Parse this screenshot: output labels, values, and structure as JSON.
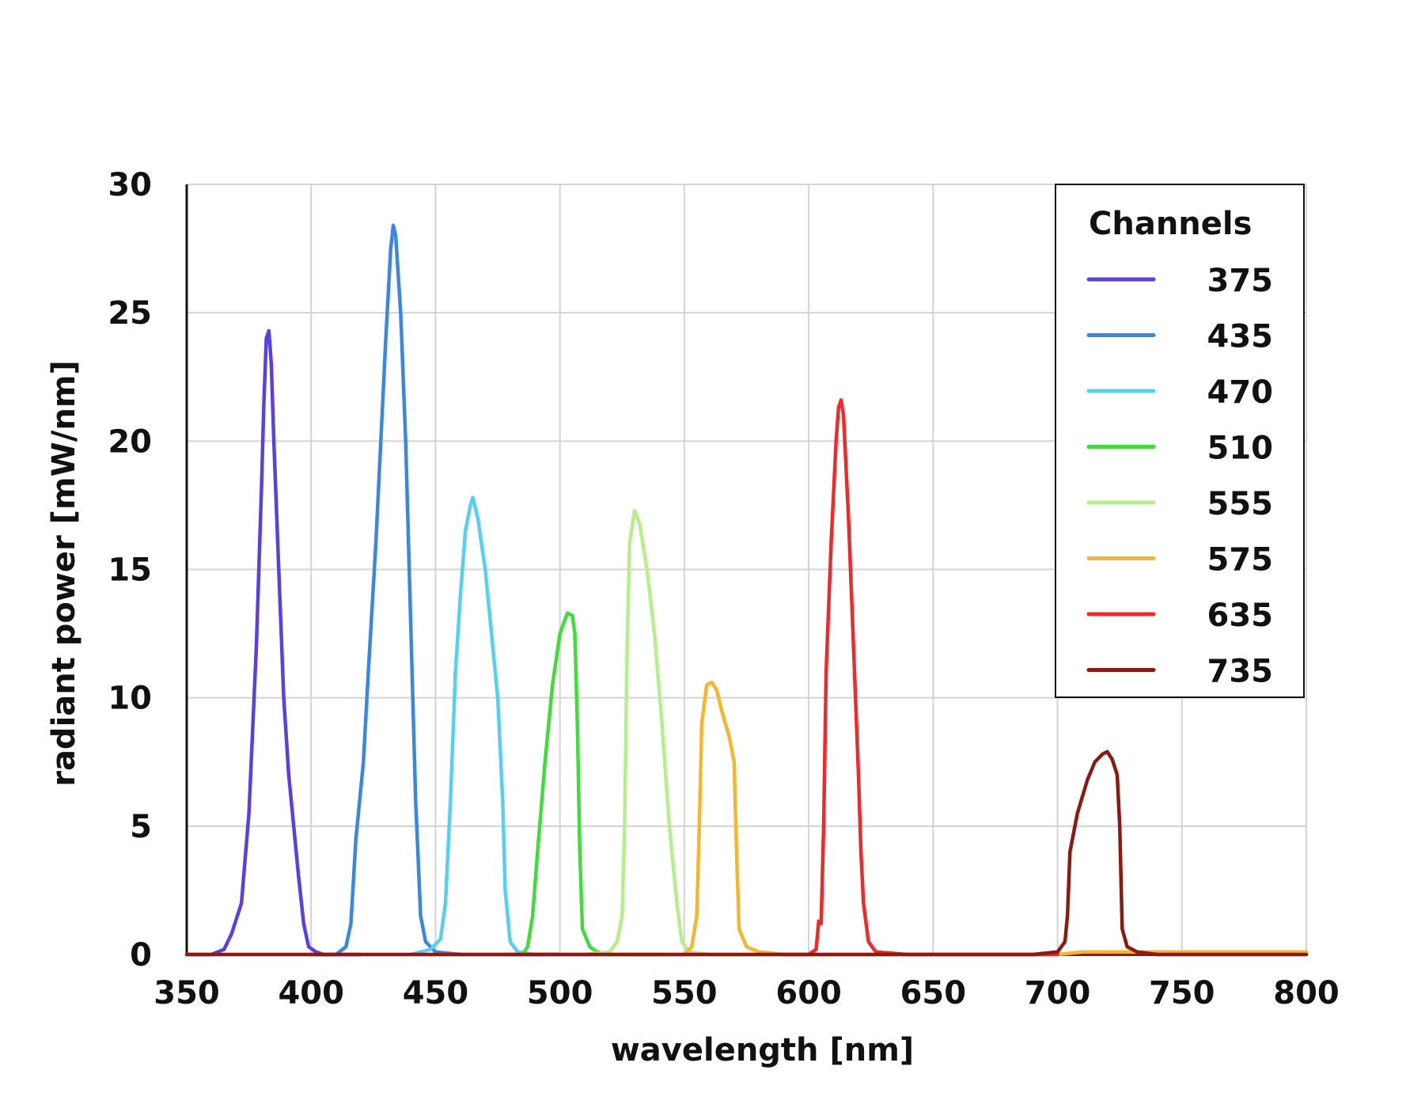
{
  "chart_data": {
    "type": "line",
    "xlabel": "wavelength [nm]",
    "ylabel": "radiant power [mW/nm]",
    "xlim": [
      350,
      800
    ],
    "ylim": [
      0,
      30
    ],
    "x_ticks": [
      350,
      400,
      450,
      500,
      550,
      600,
      650,
      700,
      750,
      800
    ],
    "y_ticks": [
      0,
      5,
      10,
      15,
      20,
      25,
      30
    ],
    "grid": true,
    "legend": {
      "title": "Channels",
      "placement": "top-right"
    },
    "series": [
      {
        "name": "375",
        "color": "#5b3fe0",
        "points": [
          [
            350,
            0
          ],
          [
            360,
            0
          ],
          [
            365,
            0.2
          ],
          [
            368,
            0.8
          ],
          [
            372,
            2
          ],
          [
            375,
            5.5
          ],
          [
            378,
            12
          ],
          [
            380,
            18
          ],
          [
            381,
            21.5
          ],
          [
            382,
            24
          ],
          [
            383,
            24.3
          ],
          [
            384,
            23
          ],
          [
            385,
            20
          ],
          [
            387,
            15
          ],
          [
            389,
            10
          ],
          [
            391,
            7
          ],
          [
            393,
            5
          ],
          [
            395,
            3
          ],
          [
            397,
            1.2
          ],
          [
            399,
            0.3
          ],
          [
            402,
            0.1
          ],
          [
            405,
            0
          ],
          [
            420,
            0
          ]
        ]
      },
      {
        "name": "435",
        "color": "#3b87e0",
        "points": [
          [
            400,
            0
          ],
          [
            410,
            0
          ],
          [
            414,
            0.3
          ],
          [
            416,
            1.2
          ],
          [
            418,
            4.5
          ],
          [
            421,
            7.5
          ],
          [
            423,
            11
          ],
          [
            426,
            16
          ],
          [
            428,
            20
          ],
          [
            430,
            24
          ],
          [
            432,
            27.5
          ],
          [
            433,
            28.4
          ],
          [
            434,
            28
          ],
          [
            436,
            25
          ],
          [
            438,
            20
          ],
          [
            440,
            13
          ],
          [
            442,
            6
          ],
          [
            444,
            1.5
          ],
          [
            446,
            0.5
          ],
          [
            450,
            0.1
          ],
          [
            460,
            0
          ],
          [
            500,
            0
          ]
        ]
      },
      {
        "name": "470",
        "color": "#55d0f0",
        "points": [
          [
            440,
            0
          ],
          [
            448,
            0.2
          ],
          [
            452,
            0.6
          ],
          [
            454,
            2
          ],
          [
            456,
            6
          ],
          [
            458,
            11
          ],
          [
            460,
            14
          ],
          [
            462,
            16.5
          ],
          [
            464,
            17.5
          ],
          [
            465,
            17.8
          ],
          [
            467,
            17
          ],
          [
            470,
            15
          ],
          [
            472,
            13
          ],
          [
            475,
            10
          ],
          [
            477,
            6
          ],
          [
            478,
            2.5
          ],
          [
            480,
            0.5
          ],
          [
            483,
            0.1
          ],
          [
            490,
            0
          ],
          [
            520,
            0
          ]
        ]
      },
      {
        "name": "510",
        "color": "#3fdc3a",
        "points": [
          [
            480,
            0
          ],
          [
            485,
            0
          ],
          [
            487,
            0.3
          ],
          [
            489,
            1.5
          ],
          [
            491,
            4
          ],
          [
            494,
            7.5
          ],
          [
            497,
            10.5
          ],
          [
            500,
            12.5
          ],
          [
            503,
            13.3
          ],
          [
            505,
            13.2
          ],
          [
            506,
            12.5
          ],
          [
            507,
            9
          ],
          [
            508,
            4
          ],
          [
            509,
            1
          ],
          [
            512,
            0.3
          ],
          [
            515,
            0.1
          ],
          [
            520,
            0
          ],
          [
            540,
            0
          ]
        ]
      },
      {
        "name": "555",
        "color": "#b6ee8a",
        "points": [
          [
            510,
            0
          ],
          [
            520,
            0.1
          ],
          [
            523,
            0.5
          ],
          [
            525,
            1.5
          ],
          [
            526,
            5
          ],
          [
            527,
            12
          ],
          [
            528,
            16
          ],
          [
            530,
            17.3
          ],
          [
            532,
            16.8
          ],
          [
            535,
            15
          ],
          [
            538,
            12.5
          ],
          [
            541,
            9
          ],
          [
            544,
            5
          ],
          [
            547,
            2
          ],
          [
            549,
            0.5
          ],
          [
            552,
            0.1
          ],
          [
            560,
            0
          ],
          [
            580,
            0
          ]
        ]
      },
      {
        "name": "575",
        "color": "#f5b52e",
        "points": [
          [
            540,
            0
          ],
          [
            550,
            0
          ],
          [
            553,
            0.3
          ],
          [
            555,
            1.5
          ],
          [
            556,
            5
          ],
          [
            557,
            9
          ],
          [
            559,
            10.5
          ],
          [
            561,
            10.6
          ],
          [
            563,
            10.3
          ],
          [
            565,
            9.5
          ],
          [
            568,
            8.5
          ],
          [
            570,
            7.5
          ],
          [
            571,
            4
          ],
          [
            572,
            1
          ],
          [
            575,
            0.3
          ],
          [
            580,
            0.1
          ],
          [
            590,
            0
          ],
          [
            700,
            0
          ],
          [
            710,
            0.1
          ],
          [
            760,
            0.1
          ],
          [
            800,
            0.1
          ]
        ]
      },
      {
        "name": "635",
        "color": "#ee2a2a",
        "points": [
          [
            590,
            0
          ],
          [
            600,
            0
          ],
          [
            603,
            0.2
          ],
          [
            604,
            1.3
          ],
          [
            605,
            1.2
          ],
          [
            606,
            5
          ],
          [
            607,
            11
          ],
          [
            609,
            16
          ],
          [
            611,
            20
          ],
          [
            612,
            21.3
          ],
          [
            613,
            21.6
          ],
          [
            614,
            21
          ],
          [
            616,
            17
          ],
          [
            618,
            12
          ],
          [
            620,
            7
          ],
          [
            621,
            4
          ],
          [
            622,
            2
          ],
          [
            624,
            0.5
          ],
          [
            627,
            0.1
          ],
          [
            640,
            0
          ],
          [
            700,
            0
          ]
        ]
      },
      {
        "name": "735",
        "color": "#8b1a14",
        "points": [
          [
            350,
            0
          ],
          [
            690,
            0
          ],
          [
            700,
            0.1
          ],
          [
            703,
            0.5
          ],
          [
            704,
            1.5
          ],
          [
            705,
            4
          ],
          [
            708,
            5.5
          ],
          [
            712,
            6.8
          ],
          [
            715,
            7.5
          ],
          [
            718,
            7.8
          ],
          [
            720,
            7.9
          ],
          [
            722,
            7.6
          ],
          [
            724,
            7
          ],
          [
            725,
            5
          ],
          [
            726,
            1
          ],
          [
            728,
            0.3
          ],
          [
            732,
            0.1
          ],
          [
            740,
            0
          ],
          [
            800,
            0
          ]
        ]
      }
    ]
  }
}
